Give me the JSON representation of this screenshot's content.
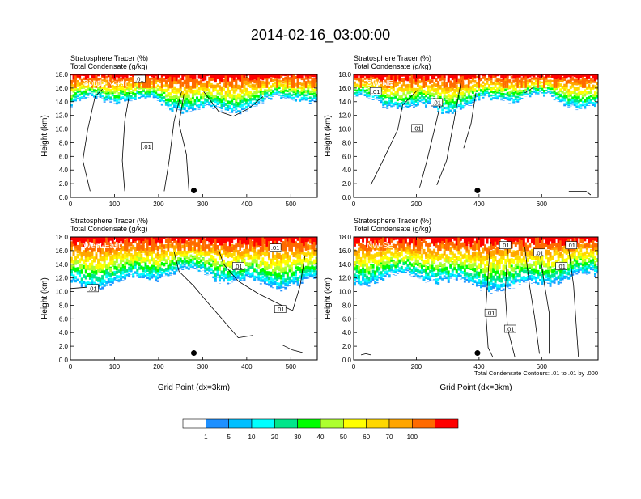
{
  "title": "2014-02-16_03:00:00",
  "colorbar": {
    "colors": [
      "#ffffff",
      "#1e90ff",
      "#00bfff",
      "#00ffff",
      "#00e68a",
      "#00ff00",
      "#adff2f",
      "#ffff00",
      "#ffd700",
      "#ffa500",
      "#ff6a00",
      "#ff0000"
    ],
    "labels": [
      "1",
      "5",
      "10",
      "20",
      "30",
      "40",
      "50",
      "60",
      "70",
      "100"
    ]
  },
  "contour_note": "Total Condensate Contours: .01 to .01 by .000",
  "chart_data": [
    {
      "type": "contour",
      "panel_label": "South-North",
      "subtitle1": "Stratosphere Tracer   (%)",
      "subtitle2": "Total Condensate   (g/kg)",
      "ylabel": "Height (km)",
      "xlabel": "",
      "xlim": [
        0,
        560
      ],
      "xticks": [
        "0",
        "100",
        "200",
        "300",
        "400",
        "500"
      ],
      "ylim": [
        0,
        18
      ],
      "yticks": [
        "0.0",
        "2.0",
        "4.0",
        "6.0",
        "8.0",
        "10.0",
        "12.0",
        "14.0",
        "16.0",
        "18.0"
      ],
      "contour_labels": [
        ".01",
        ".01"
      ],
      "marker_x": 280,
      "marker_height": 1.0
    },
    {
      "type": "contour",
      "panel_label": "SW-NE",
      "subtitle1": "Stratosphere Tracer   (%)",
      "subtitle2": "Total Condensate   (g/kg)",
      "ylabel": "Height (km)",
      "xlabel": "",
      "xlim": [
        0,
        780
      ],
      "xticks": [
        "0",
        "200",
        "400",
        "600"
      ],
      "ylim": [
        0,
        18
      ],
      "yticks": [
        "0.0",
        "2.0",
        "4.0",
        "6.0",
        "8.0",
        "10.0",
        "12.0",
        "14.0",
        "16.0",
        "18.0"
      ],
      "contour_labels": [
        ".01",
        ".01",
        ".01"
      ],
      "marker_x": 395,
      "marker_height": 1.0
    },
    {
      "type": "contour",
      "panel_label": "West-East",
      "subtitle1": "Stratosphere Tracer   (%)",
      "subtitle2": "Total Condensate   (g/kg)",
      "ylabel": "Height (km)",
      "xlabel": "Grid Point (dx=3km)",
      "xlim": [
        0,
        560
      ],
      "xticks": [
        "0",
        "100",
        "200",
        "300",
        "400",
        "500"
      ],
      "ylim": [
        0,
        18
      ],
      "yticks": [
        "0.0",
        "2.0",
        "4.0",
        "6.0",
        "8.0",
        "10.0",
        "12.0",
        "14.0",
        "16.0",
        "18.0"
      ],
      "contour_labels": [
        ".01",
        ".01",
        ".01",
        ".01"
      ],
      "marker_x": 280,
      "marker_height": 1.0
    },
    {
      "type": "contour",
      "panel_label": "NW-SE",
      "subtitle1": "Stratosphere Tracer   (%)",
      "subtitle2": "Total Condensate   (g/kg)",
      "ylabel": "Height (km)",
      "xlabel": "Grid Point (dx=3km)",
      "xlim": [
        0,
        780
      ],
      "xticks": [
        "0",
        "200",
        "400",
        "600"
      ],
      "ylim": [
        0,
        18
      ],
      "yticks": [
        "0.0",
        "2.0",
        "4.0",
        "6.0",
        "8.0",
        "10.0",
        "12.0",
        "14.0",
        "16.0",
        "18.0"
      ],
      "contour_labels": [
        ".01",
        ".01",
        ".01",
        ".01",
        ".01",
        ".01"
      ],
      "marker_x": 395,
      "marker_height": 1.0
    }
  ]
}
